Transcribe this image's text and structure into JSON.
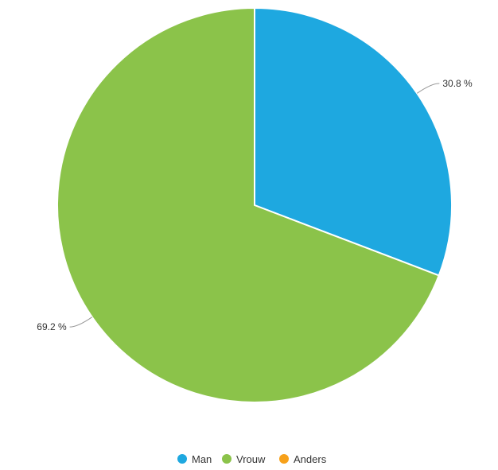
{
  "chart_data": {
    "type": "pie",
    "title": "",
    "categories": [
      "Man",
      "Vrouw",
      "Anders"
    ],
    "values": [
      30.8,
      69.2,
      0
    ],
    "value_labels": [
      "30.8 %",
      "69.2 %",
      ""
    ],
    "colors": [
      "#1ea8e0",
      "#8bc34a",
      "#f7a11a"
    ],
    "legend": {
      "position": "bottom",
      "entries": [
        "Man",
        "Vrouw",
        "Anders"
      ]
    }
  }
}
